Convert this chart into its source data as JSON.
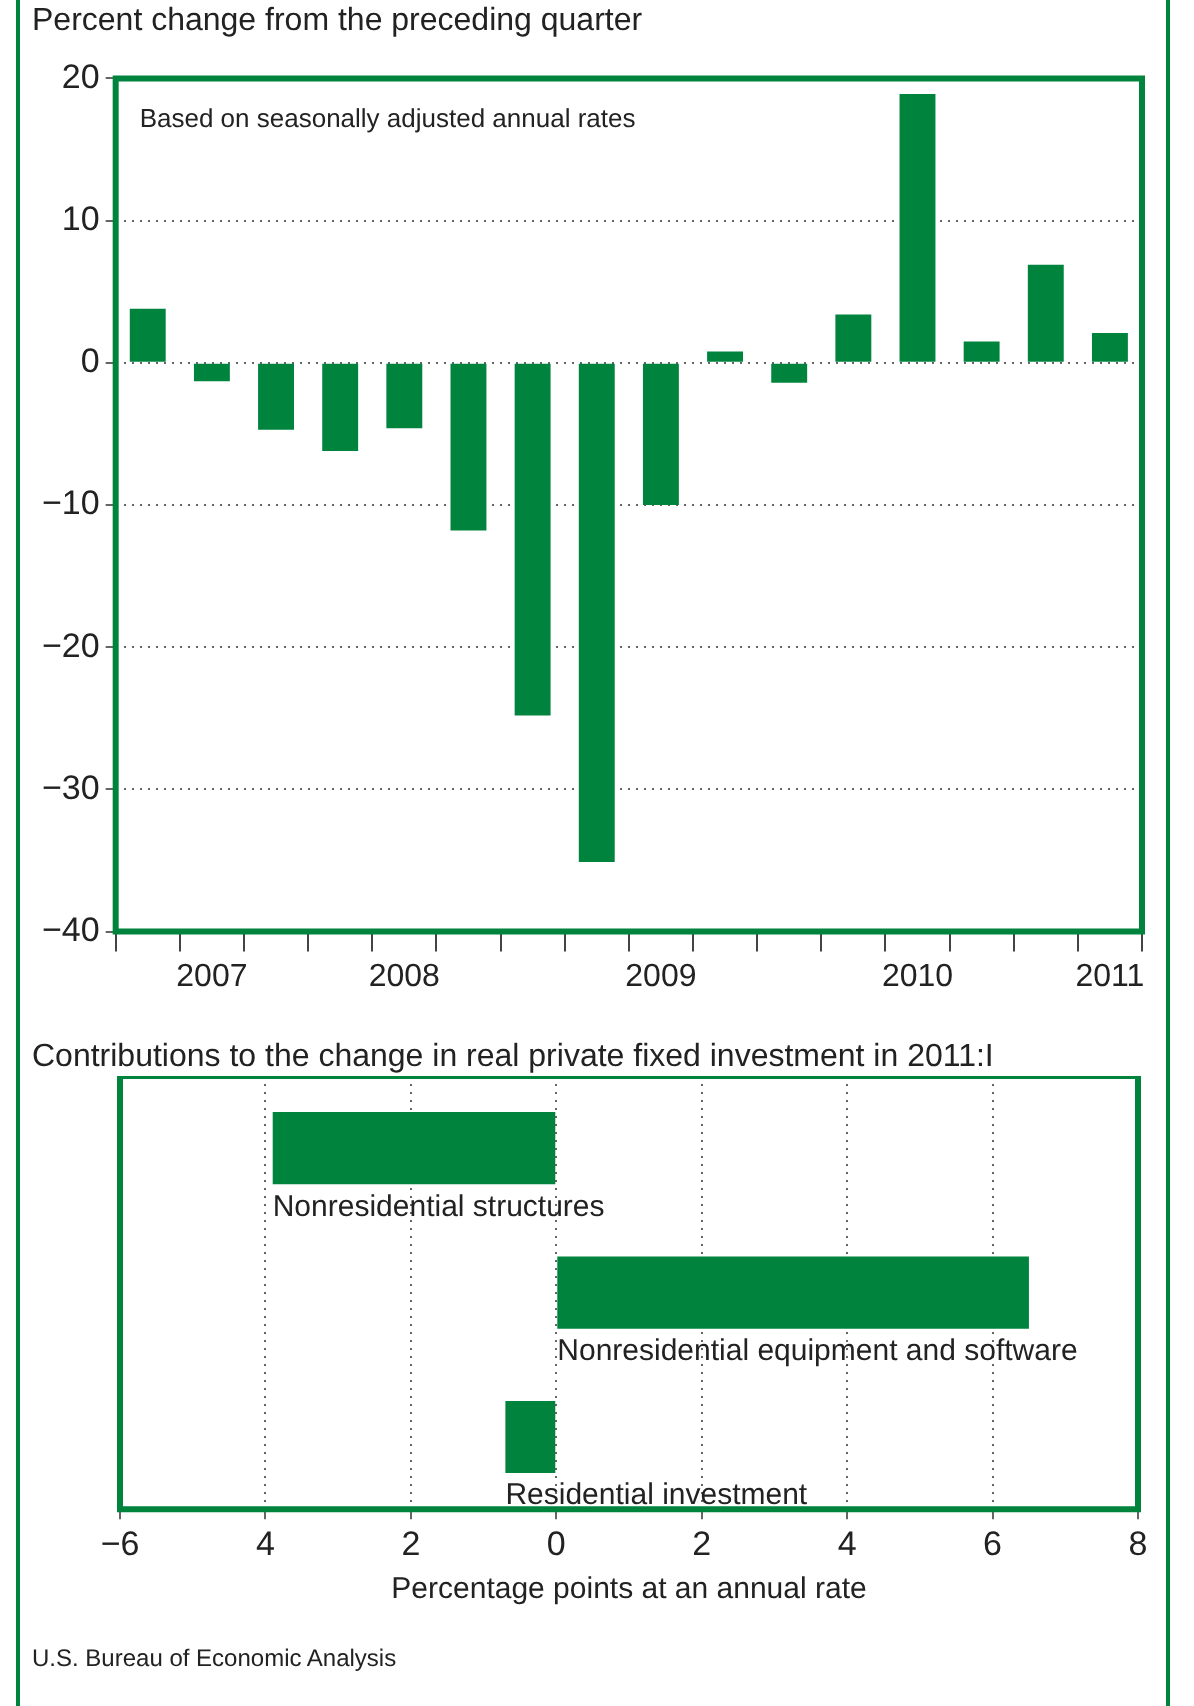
{
  "chart_data": [
    {
      "type": "bar",
      "title": "Percent change from the preceding quarter",
      "annotations": [
        "Based on seasonally adjusted annual rates"
      ],
      "categories": [
        null,
        "2007",
        null,
        null,
        "2008",
        null,
        null,
        null,
        "2009",
        null,
        null,
        null,
        "2010",
        null,
        null,
        "2011"
      ],
      "values": [
        3.8,
        -1.3,
        -4.7,
        -6.2,
        -4.6,
        -11.8,
        -24.8,
        -35.1,
        -10.0,
        0.8,
        -1.4,
        3.4,
        18.9,
        1.5,
        6.9,
        2.1
      ],
      "color": "#00843d",
      "ylim": [
        -40,
        20
      ],
      "yticks": [
        {
          "value": -40,
          "label": "−40"
        },
        {
          "value": -30,
          "label": "−30"
        },
        {
          "value": -20,
          "label": "−20"
        },
        {
          "value": -10,
          "label": "−10"
        },
        0,
        10,
        20
      ],
      "grid": "y"
    },
    {
      "type": "bar",
      "orientation": "horizontal",
      "title": "Contributions to the change in real private fixed investment in 2011:I",
      "xlabel": "Percentage points at an annual rate",
      "categories": [
        "Nonresidential structures",
        "Nonresidential equipment and software",
        "Residential investment"
      ],
      "values": [
        -3.9,
        6.5,
        -0.7
      ],
      "color": "#00843d",
      "xlim": [
        -6,
        8
      ],
      "xticks": [
        {
          "value": -6,
          "label": "−6"
        },
        {
          "value": -4,
          "label": "4"
        },
        {
          "value": -2,
          "label": "2"
        },
        0,
        2,
        4,
        6,
        8
      ],
      "grid": "x",
      "annotations": [
        "U.S. Bureau of Economic Analysis"
      ]
    }
  ]
}
